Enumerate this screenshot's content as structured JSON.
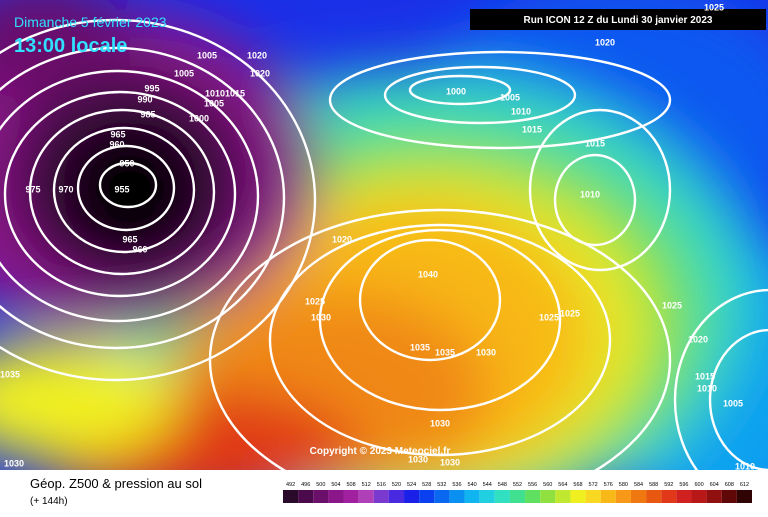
{
  "header": {
    "date": "Dimanche 5 février 2023",
    "time": "13:00 locale",
    "run": "Run ICON 12 Z du Lundi 30 janvier 2023"
  },
  "map": {
    "copyright": "Copyright © 2023 Meteociel.fr",
    "isobar_labels": [
      "1005",
      "1020",
      "1005",
      "1020",
      "995",
      "990",
      "985",
      "1015",
      "1010",
      "1005",
      "1000",
      "965",
      "960",
      "950",
      "955",
      "975",
      "970",
      "965",
      "960",
      "1000",
      "1005",
      "1010",
      "1015",
      "1015",
      "1010",
      "1020",
      "1025",
      "1020",
      "1040",
      "1025",
      "1030",
      "1025",
      "1025",
      "1025",
      "1020",
      "1035",
      "1035",
      "1030",
      "1015",
      "1010",
      "1005",
      "1035",
      "1030",
      "1030",
      "1030",
      "1030",
      "1010"
    ]
  },
  "footer": {
    "title": "Géop. Z500 & pression au sol",
    "lead": "(+ 144h)"
  },
  "legend": {
    "values": [
      492,
      496,
      500,
      504,
      508,
      512,
      516,
      520,
      524,
      528,
      532,
      536,
      540,
      544,
      548,
      552,
      556,
      560,
      564,
      568,
      572,
      576,
      580,
      584,
      588,
      592,
      596,
      600,
      604,
      608,
      612
    ],
    "colors": [
      "#2a0a2a",
      "#4b0a4b",
      "#6a0f6a",
      "#8a168a",
      "#a020a0",
      "#b040b8",
      "#7a3ad0",
      "#4a2ae0",
      "#1a20e8",
      "#0a40f0",
      "#0a68f0",
      "#0a90f0",
      "#10b4f0",
      "#20d0e0",
      "#30e0c0",
      "#40e090",
      "#60e060",
      "#90e040",
      "#c0e830",
      "#f0f020",
      "#f8d820",
      "#f8b818",
      "#f89818",
      "#f07810",
      "#e85810",
      "#e03818",
      "#d02020",
      "#b81818",
      "#901010",
      "#600808",
      "#300404"
    ]
  }
}
